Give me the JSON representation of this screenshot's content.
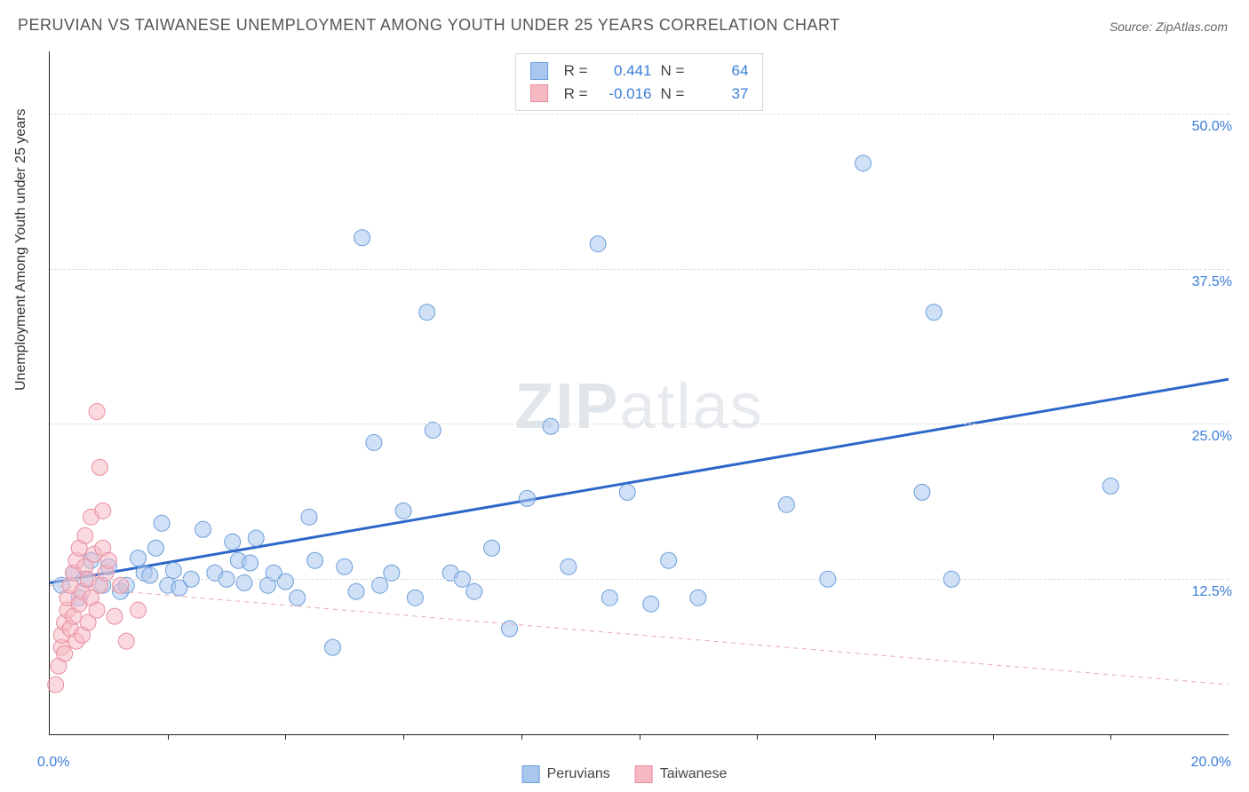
{
  "title": "PERUVIAN VS TAIWANESE UNEMPLOYMENT AMONG YOUTH UNDER 25 YEARS CORRELATION CHART",
  "source_label": "Source: ZipAtlas.com",
  "watermark_zip": "ZIP",
  "watermark_atlas": "atlas",
  "ylabel": "Unemployment Among Youth under 25 years",
  "chart": {
    "type": "scatter",
    "xlim": [
      0,
      20
    ],
    "ylim": [
      0,
      55
    ],
    "x_origin_label": "0.0%",
    "x_max_label": "20.0%",
    "xticks": [
      2,
      4,
      6,
      8,
      10,
      12,
      14,
      16,
      18
    ],
    "ytick_labels": [
      {
        "v": 12.5,
        "label": "12.5%"
      },
      {
        "v": 25.0,
        "label": "25.0%"
      },
      {
        "v": 37.5,
        "label": "37.5%"
      },
      {
        "v": 50.0,
        "label": "50.0%"
      }
    ],
    "grid_y": [
      12.5,
      25.0,
      37.5,
      50.0
    ],
    "background_color": "#ffffff",
    "grid_color": "#dcdcdc",
    "marker_radius": 9,
    "marker_opacity": 0.55,
    "series": [
      {
        "key": "peruvians",
        "label": "Peruvians",
        "fill": "#a9c7ee",
        "stroke": "#6b9edb",
        "line_color": "#2d66c9",
        "line_width": 3,
        "line_dash": null,
        "trend": {
          "x1": 0,
          "y1": 12.2,
          "x2": 20,
          "y2": 28.6
        },
        "stats": {
          "R_label": "R =",
          "R": "0.441",
          "N_label": "N =",
          "N": "64"
        },
        "points": [
          [
            0.2,
            12.0
          ],
          [
            0.4,
            13.0
          ],
          [
            0.5,
            11.0
          ],
          [
            0.6,
            12.5
          ],
          [
            0.7,
            14.0
          ],
          [
            0.9,
            12.0
          ],
          [
            1.0,
            13.5
          ],
          [
            1.2,
            11.5
          ],
          [
            1.3,
            12.0
          ],
          [
            1.5,
            14.2
          ],
          [
            1.6,
            13.0
          ],
          [
            1.7,
            12.8
          ],
          [
            1.8,
            15.0
          ],
          [
            1.9,
            17.0
          ],
          [
            2.0,
            12.0
          ],
          [
            2.1,
            13.2
          ],
          [
            2.2,
            11.8
          ],
          [
            2.4,
            12.5
          ],
          [
            2.6,
            16.5
          ],
          [
            2.8,
            13.0
          ],
          [
            3.0,
            12.5
          ],
          [
            3.1,
            15.5
          ],
          [
            3.2,
            14.0
          ],
          [
            3.3,
            12.2
          ],
          [
            3.4,
            13.8
          ],
          [
            3.5,
            15.8
          ],
          [
            3.7,
            12.0
          ],
          [
            3.8,
            13.0
          ],
          [
            4.0,
            12.3
          ],
          [
            4.2,
            11.0
          ],
          [
            4.4,
            17.5
          ],
          [
            4.5,
            14.0
          ],
          [
            4.8,
            7.0
          ],
          [
            5.0,
            13.5
          ],
          [
            5.2,
            11.5
          ],
          [
            5.3,
            40.0
          ],
          [
            5.5,
            23.5
          ],
          [
            5.6,
            12.0
          ],
          [
            5.8,
            13.0
          ],
          [
            6.0,
            18.0
          ],
          [
            6.2,
            11.0
          ],
          [
            6.4,
            34.0
          ],
          [
            6.5,
            24.5
          ],
          [
            6.8,
            13.0
          ],
          [
            7.0,
            12.5
          ],
          [
            7.2,
            11.5
          ],
          [
            7.5,
            15.0
          ],
          [
            7.8,
            8.5
          ],
          [
            8.1,
            19.0
          ],
          [
            8.5,
            24.8
          ],
          [
            8.8,
            13.5
          ],
          [
            9.3,
            39.5
          ],
          [
            9.5,
            11.0
          ],
          [
            9.8,
            19.5
          ],
          [
            10.2,
            10.5
          ],
          [
            10.5,
            14.0
          ],
          [
            11.0,
            11.0
          ],
          [
            12.5,
            18.5
          ],
          [
            13.2,
            12.5
          ],
          [
            13.8,
            46.0
          ],
          [
            14.8,
            19.5
          ],
          [
            15.0,
            34.0
          ],
          [
            15.3,
            12.5
          ],
          [
            18.0,
            20.0
          ]
        ]
      },
      {
        "key": "taiwanese",
        "label": "Taiwanese",
        "fill": "#f6b9c4",
        "stroke": "#e98ea0",
        "line_color": "#e4a7af",
        "line_width": 1,
        "line_dash": "5,5",
        "trend": {
          "x1": 0,
          "y1": 12.0,
          "x2": 20,
          "y2": 4.0
        },
        "stats": {
          "R_label": "R =",
          "R": "-0.016",
          "N_label": "N =",
          "N": "37"
        },
        "points": [
          [
            0.1,
            4.0
          ],
          [
            0.15,
            5.5
          ],
          [
            0.2,
            7.0
          ],
          [
            0.2,
            8.0
          ],
          [
            0.25,
            9.0
          ],
          [
            0.25,
            6.5
          ],
          [
            0.3,
            10.0
          ],
          [
            0.3,
            11.0
          ],
          [
            0.35,
            12.0
          ],
          [
            0.35,
            8.5
          ],
          [
            0.4,
            13.0
          ],
          [
            0.4,
            9.5
          ],
          [
            0.45,
            14.0
          ],
          [
            0.45,
            7.5
          ],
          [
            0.5,
            15.0
          ],
          [
            0.5,
            10.5
          ],
          [
            0.55,
            11.5
          ],
          [
            0.55,
            8.0
          ],
          [
            0.6,
            13.5
          ],
          [
            0.6,
            16.0
          ],
          [
            0.65,
            12.5
          ],
          [
            0.65,
            9.0
          ],
          [
            0.7,
            17.5
          ],
          [
            0.7,
            11.0
          ],
          [
            0.75,
            14.5
          ],
          [
            0.8,
            26.0
          ],
          [
            0.8,
            10.0
          ],
          [
            0.85,
            21.5
          ],
          [
            0.85,
            12.0
          ],
          [
            0.9,
            15.0
          ],
          [
            0.9,
            18.0
          ],
          [
            0.95,
            13.0
          ],
          [
            1.0,
            14.0
          ],
          [
            1.1,
            9.5
          ],
          [
            1.2,
            12.0
          ],
          [
            1.3,
            7.5
          ],
          [
            1.5,
            10.0
          ]
        ]
      }
    ]
  },
  "legend": {
    "peruvians": "Peruvians",
    "taiwanese": "Taiwanese"
  }
}
